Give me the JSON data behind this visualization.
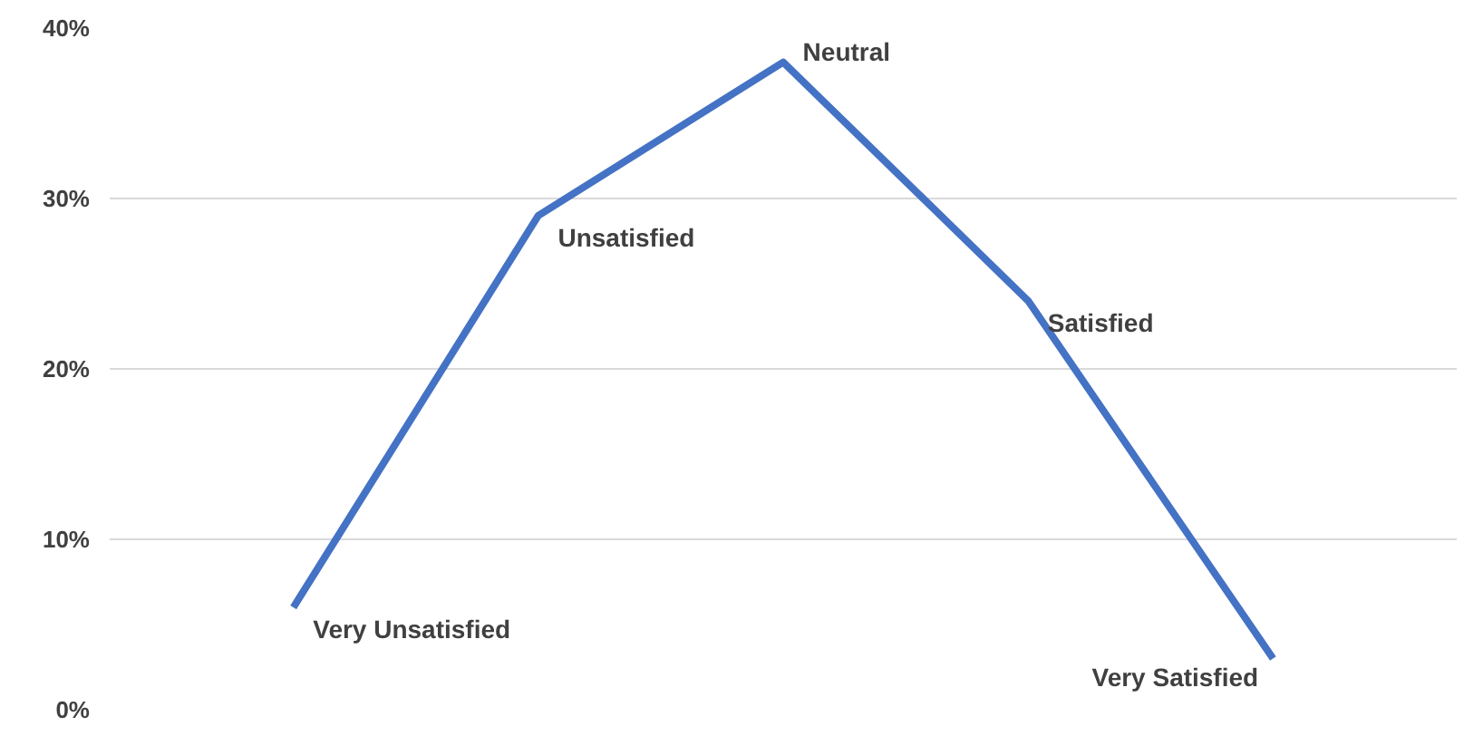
{
  "chart_data": {
    "type": "line",
    "categories": [
      "Very Unsatisfied",
      "Unsatisfied",
      "Neutral",
      "Satisfied",
      "Very Satisfied"
    ],
    "series": [
      {
        "color": "#4472c4",
        "values": [
          6,
          29,
          38,
          24,
          3
        ]
      }
    ],
    "ylim": [
      0,
      40
    ],
    "yticks": [
      {
        "value": 0,
        "label": "0%"
      },
      {
        "value": 10,
        "label": "10%"
      },
      {
        "value": 20,
        "label": "20%"
      },
      {
        "value": 30,
        "label": "30%"
      },
      {
        "value": 40,
        "label": "40%"
      }
    ],
    "grid": "y",
    "marker": "none",
    "line_style": "solid"
  }
}
